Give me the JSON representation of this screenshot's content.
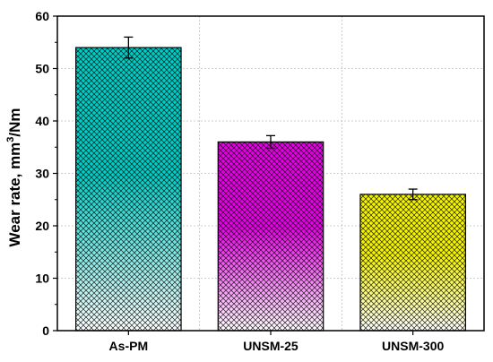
{
  "chart_data": {
    "type": "bar",
    "categories": [
      "As-PM",
      "UNSM-25",
      "UNSM-300"
    ],
    "values": [
      54,
      36,
      26
    ],
    "errors": [
      2,
      1.2,
      1
    ],
    "colors": [
      "#00cdc5",
      "#e600e6",
      "#f5f500"
    ],
    "hatch": "crosshatch",
    "title": "",
    "xlabel": "",
    "ylabel": "Wear rate, mm",
    "ylabel_sup": "3",
    "ylabel_suffix": "/Nm",
    "ylim": [
      0,
      60
    ],
    "yticks": [
      0,
      10,
      20,
      30,
      40,
      50,
      60
    ],
    "grid": true
  }
}
